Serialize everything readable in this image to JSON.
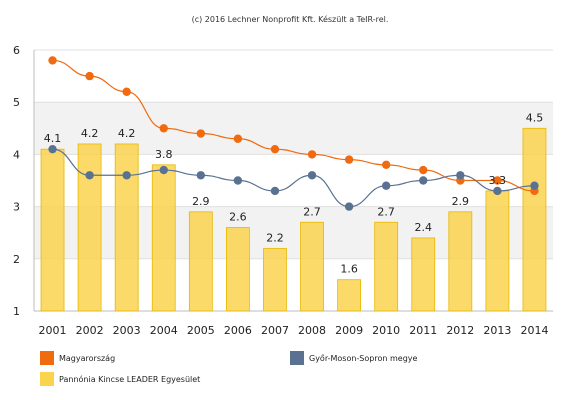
{
  "credit": "(c) 2016 Lechner Nonprofit Kft. Készült a TeIR-rel.",
  "chart_data": {
    "type": "bar",
    "title": "",
    "xlabel": "",
    "ylabel": "",
    "ylim": [
      1,
      6
    ],
    "yticks": [
      1,
      2,
      3,
      4,
      5,
      6
    ],
    "grid": true,
    "legend_position": "bottom",
    "categories": [
      "2001",
      "2002",
      "2003",
      "2004",
      "2005",
      "2006",
      "2007",
      "2008",
      "2009",
      "2010",
      "2011",
      "2012",
      "2013",
      "2014"
    ],
    "series": [
      {
        "name": "Pannónia Kincse LEADER Egyesület",
        "kind": "bar",
        "color": "#FAD44F",
        "values": [
          4.1,
          4.2,
          4.2,
          3.8,
          2.9,
          2.6,
          2.2,
          2.7,
          1.6,
          2.7,
          2.4,
          2.9,
          3.3,
          4.5
        ],
        "labels": [
          "4.1",
          "4.2",
          "4.2",
          "3.8",
          "2.9",
          "2.6",
          "2.2",
          "2.7",
          "1.6",
          "2.7",
          "2.4",
          "2.9",
          "3.3",
          "4.5"
        ]
      },
      {
        "name": "Magyarország",
        "kind": "line",
        "color": "#F06A0F",
        "values": [
          5.8,
          5.5,
          5.2,
          4.5,
          4.4,
          4.3,
          4.1,
          4.0,
          3.9,
          3.8,
          3.7,
          3.5,
          3.5,
          3.3
        ]
      },
      {
        "name": "Győr-Moson-Sopron megye",
        "kind": "line",
        "color": "#5A7292",
        "values": [
          4.1,
          3.6,
          3.6,
          3.7,
          3.6,
          3.5,
          3.3,
          3.6,
          3.0,
          3.4,
          3.5,
          3.6,
          3.3,
          3.4
        ]
      }
    ]
  },
  "legend": [
    {
      "label": "Magyarország",
      "color": "#F06A0F"
    },
    {
      "label": "Győr-Moson-Sopron megye",
      "color": "#5A7292"
    },
    {
      "label": "Pannónia Kincse LEADER Egyesület",
      "color": "#FAD44F"
    }
  ]
}
